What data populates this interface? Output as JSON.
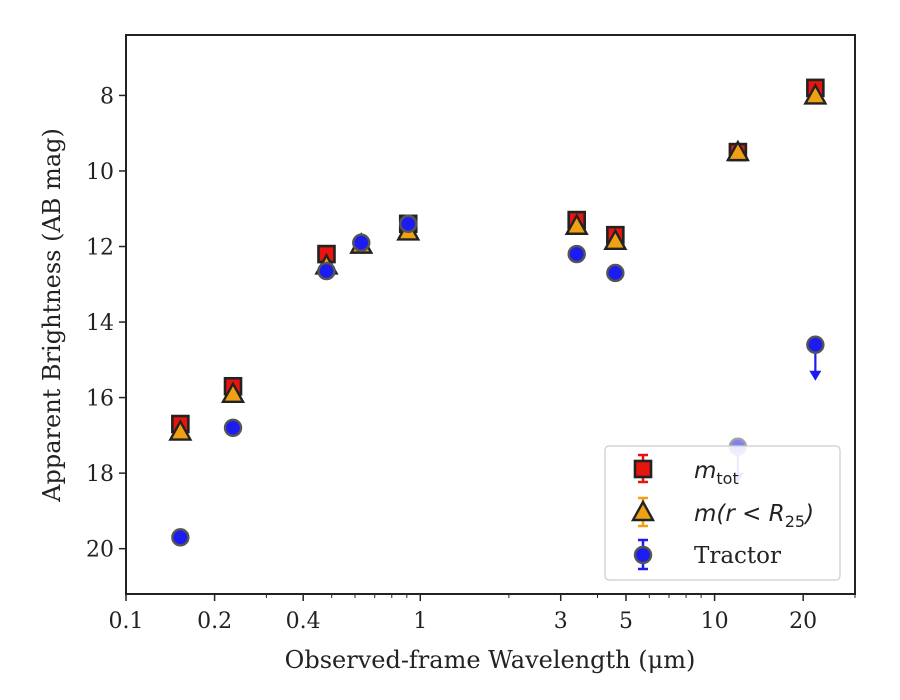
{
  "chart_data": {
    "type": "scatter",
    "xlabel": "Observed-frame Wavelength (μm)",
    "ylabel": "Apparent Brightness (AB mag)",
    "xscale": "log",
    "xlim": [
      0.1,
      30
    ],
    "ylim": [
      21.2,
      6.4
    ],
    "y_inverted": true,
    "x_ticks": [
      0.1,
      0.2,
      0.4,
      1,
      3,
      5,
      10,
      20
    ],
    "x_tick_labels": [
      "0.1",
      "0.2",
      "0.4",
      "1",
      "3",
      "5",
      "10",
      "20"
    ],
    "y_ticks": [
      8,
      10,
      12,
      14,
      16,
      18,
      20
    ],
    "y_tick_labels": [
      "8",
      "10",
      "12",
      "14",
      "16",
      "18",
      "20"
    ],
    "grid": false,
    "legend_position": "lower-right",
    "series": [
      {
        "name": "m_tot",
        "legend_main": "m",
        "legend_sub": "tot",
        "marker": "square",
        "color": "#e8140e",
        "points": [
          {
            "x": 0.153,
            "y": 16.7
          },
          {
            "x": 0.231,
            "y": 15.7
          },
          {
            "x": 0.48,
            "y": 12.2
          },
          {
            "x": 0.91,
            "y": 11.4
          },
          {
            "x": 3.4,
            "y": 11.3
          },
          {
            "x": 4.6,
            "y": 11.7
          },
          {
            "x": 12.0,
            "y": 9.5
          },
          {
            "x": 22.0,
            "y": 7.8
          }
        ]
      },
      {
        "name": "m(r < R25)",
        "legend_pre": "m(r < R",
        "legend_sub": "25",
        "legend_post": ")",
        "marker": "triangle",
        "color": "#f0a013",
        "points": [
          {
            "x": 0.153,
            "y": 16.9
          },
          {
            "x": 0.231,
            "y": 15.9
          },
          {
            "x": 0.48,
            "y": 12.5
          },
          {
            "x": 0.63,
            "y": 11.95
          },
          {
            "x": 0.91,
            "y": 11.6
          },
          {
            "x": 3.4,
            "y": 11.45
          },
          {
            "x": 4.6,
            "y": 11.85
          },
          {
            "x": 12.0,
            "y": 9.5
          },
          {
            "x": 22.0,
            "y": 8.0
          }
        ]
      },
      {
        "name": "Tractor",
        "marker": "circle",
        "color": "#1c1cf0",
        "points": [
          {
            "x": 0.153,
            "y": 19.7
          },
          {
            "x": 0.231,
            "y": 16.8
          },
          {
            "x": 0.48,
            "y": 12.65
          },
          {
            "x": 0.63,
            "y": 11.9
          },
          {
            "x": 0.91,
            "y": 11.4
          },
          {
            "x": 3.4,
            "y": 12.2
          },
          {
            "x": 4.6,
            "y": 12.7
          },
          {
            "x": 12.0,
            "y": 17.3,
            "upper_limit": true,
            "faded": true
          },
          {
            "x": 22.0,
            "y": 14.6,
            "upper_limit": true
          }
        ]
      }
    ]
  }
}
